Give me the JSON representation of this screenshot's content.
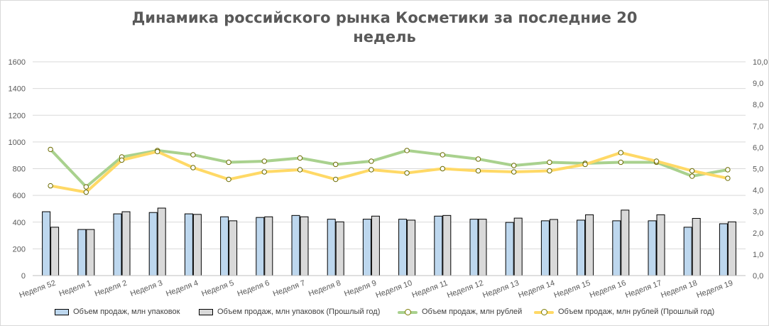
{
  "chart_data": {
    "type": "bar+line",
    "title": "Динамика российского рынка Косметики за последние 20 недель",
    "title_lines": [
      "Динамика российского рынка Косметики за последние 20",
      "недель"
    ],
    "categories": [
      "Неделя 52",
      "Неделя 1",
      "Неделя 2",
      "Неделя 3",
      "Неделя 4",
      "Неделя 5",
      "Неделя 6",
      "Неделя 7",
      "Неделя 8",
      "Неделя 9",
      "Неделя 10",
      "Неделя 11",
      "Неделя 12",
      "Неделя 13",
      "Неделя 14",
      "Неделя 15",
      "Неделя 16",
      "Неделя 17",
      "Неделя 18",
      "Неделя 19"
    ],
    "y_left": {
      "lim": [
        0,
        1600
      ],
      "ticks": [
        "0",
        "200",
        "400",
        "600",
        "800",
        "1000",
        "1200",
        "1400",
        "1600"
      ]
    },
    "y_right": {
      "lim": [
        0,
        10
      ],
      "ticks": [
        "0,0",
        "1,0",
        "2,0",
        "3,0",
        "4,0",
        "5,0",
        "6,0",
        "7,0",
        "8,0",
        "9,0",
        "10,0"
      ]
    },
    "grid": true,
    "legend_position": "bottom",
    "series": [
      {
        "name": "Объем продаж, млн упаковок",
        "kind": "bar",
        "axis": "left",
        "color": "#bdd7ee",
        "values": [
          478,
          345,
          462,
          472,
          462,
          440,
          435,
          450,
          422,
          422,
          422,
          445,
          422,
          398,
          410,
          415,
          410,
          410,
          362,
          388
        ]
      },
      {
        "name": "Объем продаж, млн упаковок (Прошлый год)",
        "kind": "bar",
        "axis": "left",
        "color": "#d9d9d9",
        "values": [
          362,
          345,
          478,
          505,
          458,
          410,
          440,
          440,
          402,
          445,
          415,
          450,
          422,
          430,
          420,
          455,
          490,
          455,
          428,
          402
        ]
      },
      {
        "name": "Объем продаж, млн рублей",
        "kind": "line",
        "axis": "right",
        "color": "#a9d18e",
        "values": [
          5.9,
          4.15,
          5.55,
          5.85,
          5.65,
          5.3,
          5.35,
          5.5,
          5.2,
          5.35,
          5.85,
          5.65,
          5.45,
          5.15,
          5.3,
          5.25,
          5.3,
          5.3,
          4.65,
          4.95
        ]
      },
      {
        "name": "Объем продаж, млн рублей (Прошлый год)",
        "kind": "line",
        "axis": "right",
        "color": "#ffd966",
        "values": [
          4.2,
          3.9,
          5.4,
          5.8,
          5.05,
          4.5,
          4.85,
          4.95,
          4.5,
          4.95,
          4.8,
          5.0,
          4.9,
          4.85,
          4.9,
          5.2,
          5.75,
          5.35,
          4.9,
          4.55
        ]
      }
    ]
  }
}
